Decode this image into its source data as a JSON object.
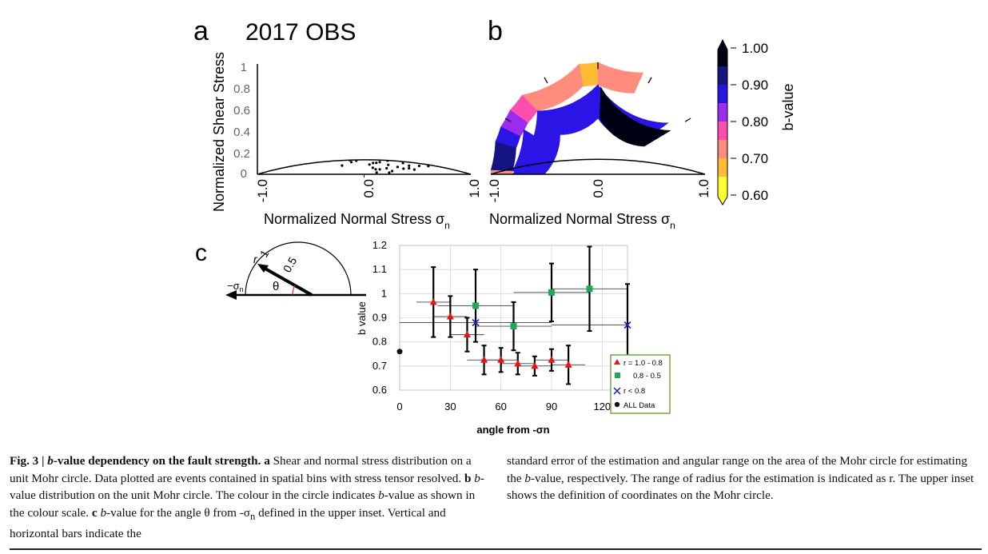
{
  "panels": {
    "a": {
      "letter": "a",
      "title": "2017 OBS",
      "ylabel": "Normalized Shear Stress",
      "xlabel": "Normalized Normal Stress σ",
      "xlabel_sub": "n",
      "yticks": [
        "1",
        "0.8",
        "0.6",
        "0.4",
        "0.2",
        "0"
      ],
      "xticks": [
        "-1.0",
        "0.0",
        "1.0"
      ]
    },
    "b": {
      "letter": "b",
      "xlabel": "Normalized Normal Stress σ",
      "xlabel_sub": "n",
      "xticks": [
        "-1.0",
        "0.0",
        "1.0"
      ]
    },
    "colorbar": {
      "label": "b-value",
      "ticks": [
        "1.00",
        "0.90",
        "0.80",
        "0.70",
        "0.60"
      ],
      "colors": [
        "#ffff33",
        "#ffbb33",
        "#ff8c7c",
        "#ff4fae",
        "#9b2bf0",
        "#2a14e6",
        "#141482",
        "#000014"
      ]
    },
    "c": {
      "letter": "c",
      "inset": {
        "label_r": "r",
        "label_1": "1",
        "label_05": "0.5",
        "label_theta": "θ",
        "label_sigma": "−σ",
        "label_sigma_sub": "n"
      }
    }
  },
  "chart_data": {
    "type": "scatter",
    "xlabel": "angle from -σn",
    "ylabel": "b value",
    "xlim": [
      0,
      135
    ],
    "ylim": [
      0.6,
      1.2
    ],
    "xticks": [
      "0",
      "30",
      "60",
      "90",
      "120"
    ],
    "yticks": [
      "0.6",
      "0.7",
      "0.8",
      "0.9",
      "1",
      "1.1",
      "1.2"
    ],
    "grid": true,
    "legend_position": "bottom-right",
    "series": [
      {
        "name": "r = 1.0 - 0.8",
        "marker": "triangle",
        "color": "#ee1111",
        "points": [
          {
            "x": 20,
            "y": 0.965,
            "yerr": 0.145,
            "xmin": 10,
            "xmax": 30
          },
          {
            "x": 30,
            "y": 0.905,
            "yerr": 0.085,
            "xmin": 20,
            "xmax": 40
          },
          {
            "x": 40,
            "y": 0.83,
            "yerr": 0.07,
            "xmin": 30,
            "xmax": 50
          },
          {
            "x": 50,
            "y": 0.725,
            "yerr": 0.06,
            "xmin": 40,
            "xmax": 60
          },
          {
            "x": 60,
            "y": 0.725,
            "yerr": 0.05,
            "xmin": 50,
            "xmax": 70
          },
          {
            "x": 70,
            "y": 0.71,
            "yerr": 0.045,
            "xmin": 60,
            "xmax": 80
          },
          {
            "x": 80,
            "y": 0.7,
            "yerr": 0.04,
            "xmin": 70,
            "xmax": 90
          },
          {
            "x": 90,
            "y": 0.725,
            "yerr": 0.045,
            "xmin": 80,
            "xmax": 100
          },
          {
            "x": 100,
            "y": 0.705,
            "yerr": 0.08,
            "xmin": 90,
            "xmax": 110
          }
        ]
      },
      {
        "name": "0.8 - 0.5",
        "marker": "square",
        "color": "#1fa855",
        "points": [
          {
            "x": 45,
            "y": 0.95,
            "yerr": 0.15,
            "xmin": 22.5,
            "xmax": 67.5
          },
          {
            "x": 67.5,
            "y": 0.865,
            "yerr": 0.1,
            "xmin": 45,
            "xmax": 90
          },
          {
            "x": 90,
            "y": 1.005,
            "yerr": 0.12,
            "xmin": 67.5,
            "xmax": 112.5
          },
          {
            "x": 112.5,
            "y": 1.02,
            "yerr": 0.175,
            "xmin": 90,
            "xmax": 135
          }
        ]
      },
      {
        "name": "r < 0.8",
        "marker": "cross",
        "color": "#1a1acc",
        "points": [
          {
            "x": 45,
            "y": 0.88,
            "yerr": 0,
            "xmin": 0,
            "xmax": 90
          },
          {
            "x": 135,
            "y": 0.87,
            "yerr": 0.17,
            "xmin": 90,
            "xmax": 180
          }
        ]
      },
      {
        "name": "ALL Data",
        "marker": "circle",
        "color": "#111111",
        "points": [
          {
            "x": 0,
            "y": 0.76,
            "yerr": 0,
            "xmin": 0,
            "xmax": 0
          }
        ]
      }
    ]
  },
  "caption": {
    "fig_label": "Fig. 3 | ",
    "fig_title_pre": "",
    "fig_title_b": "b",
    "fig_title_post": "-value dependency on the fault strength.",
    "a_letter": "a",
    "a_text": " Shear and normal stress distribution on a unit Mohr circle. Data plotted are events contained in spatial bins with stress tensor resolved. ",
    "b_letter": "b",
    "b_b": "b",
    "b_text": "-value distribution on the unit Mohr circle. The colour in the circle indicates ",
    "b_b2": "b",
    "b_text2": "-value as shown in the colour scale. ",
    "c_letter": "c",
    "c_b": "b",
    "c_text": "-value for the angle θ from -σ",
    "c_sub": "n",
    "c_text2": " defined in the upper inset. Vertical and horizontal bars indicate the",
    "right_1": "standard error of the estimation and angular range on the area of the Mohr circle for estimating the ",
    "right_b": "b",
    "right_2": "-value, respectively. The range of radius for the estimation is indicated as r. The upper inset shows the definition of coordinates on the Mohr circle."
  }
}
